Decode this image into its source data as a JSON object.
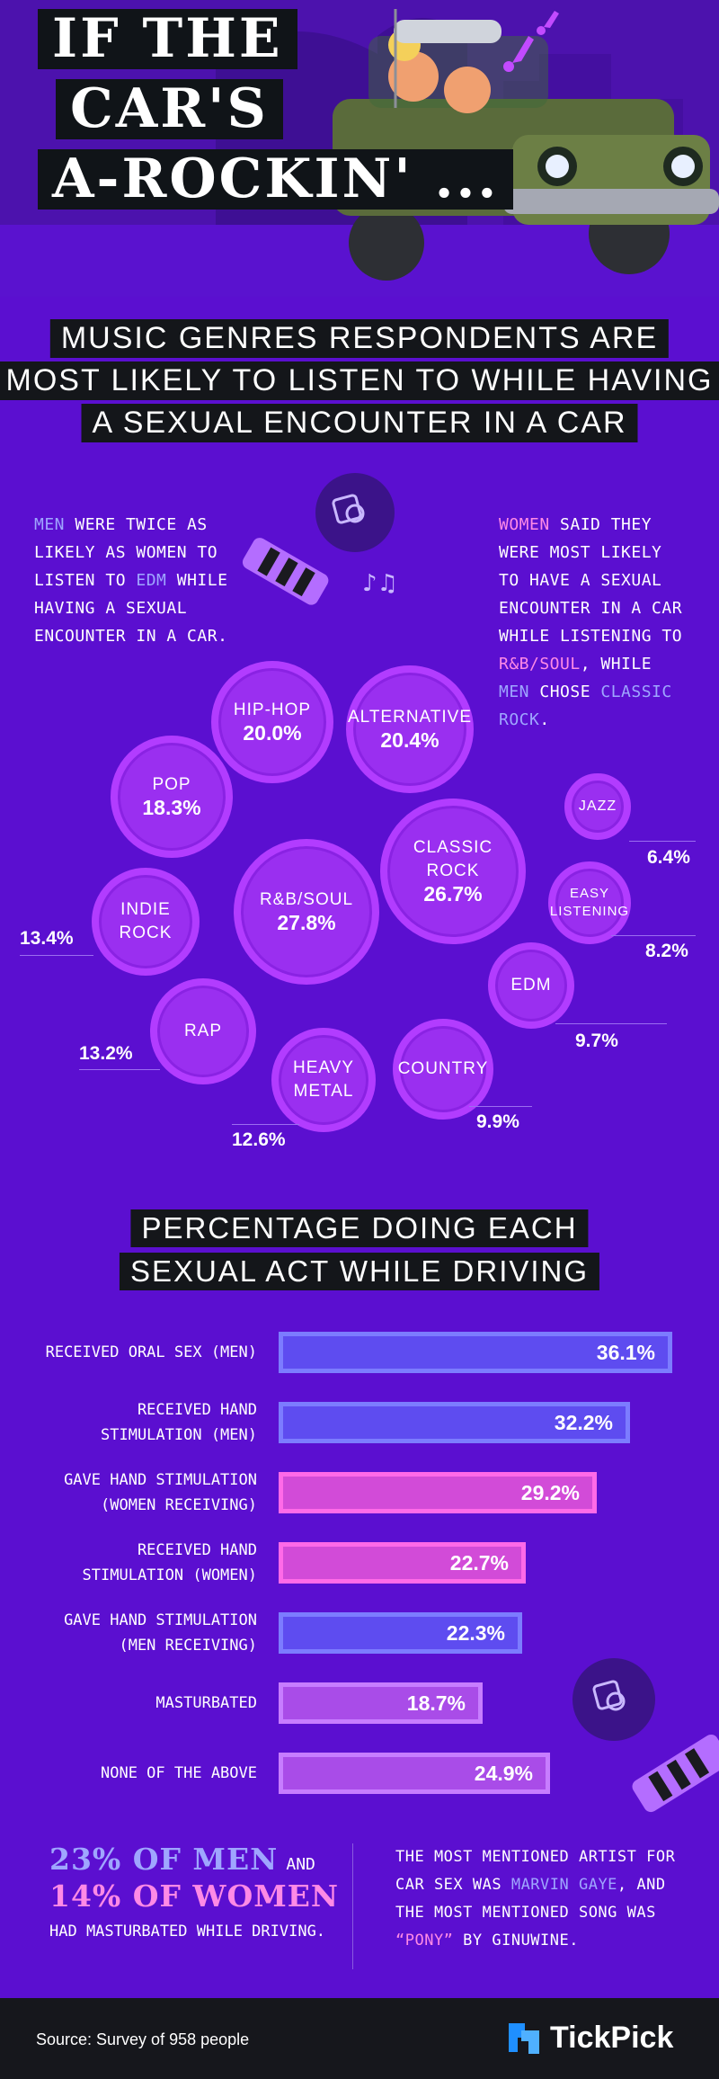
{
  "header": {
    "title_lines": [
      "IF THE",
      "CAR'S",
      "A-ROCKIN' ..."
    ],
    "subtitle_lines": [
      "MUSIC GENRES RESPONDENTS ARE",
      "MOST LIKELY TO LISTEN TO WHILE HAVING",
      "A SEXUAL ENCOUNTER IN A CAR"
    ]
  },
  "men_note": {
    "highlight_1": "MEN",
    "text_1": " WERE TWICE AS LIKELY AS WOMEN TO LISTEN TO ",
    "highlight_2": "EDM",
    "text_2": " WHILE HAVING A SEXUAL ENCOUNTER IN A CAR."
  },
  "women_note": {
    "highlight_1": "WOMEN",
    "text_1": " SAID THEY WERE MOST LIKELY TO HAVE A SEXUAL ENCOUNTER IN A CAR WHILE LISTENING TO ",
    "highlight_2": "R&B/SOUL",
    "text_2": ", WHILE ",
    "highlight_3": "MEN",
    "text_3": " CHOSE ",
    "highlight_4": "CLASSIC ROCK",
    "text_4": "."
  },
  "genres": [
    {
      "label": "HIP-HOP",
      "value": "20.0%"
    },
    {
      "label": "ALTERNATIVE",
      "value": "20.4%"
    },
    {
      "label": "POP",
      "value": "18.3%"
    },
    {
      "label": "JAZZ",
      "value": "6.4%"
    },
    {
      "label": "CLASSIC\nROCK",
      "value": "26.7%"
    },
    {
      "label": "INDIE\nROCK",
      "value": "13.4%"
    },
    {
      "label": "R&B/SOUL",
      "value": "27.8%"
    },
    {
      "label": "EASY\nLISTENING",
      "value": "8.2%"
    },
    {
      "label": "EDM",
      "value": "9.7%"
    },
    {
      "label": "RAP",
      "value": "13.2%"
    },
    {
      "label": "HEAVY\nMETAL",
      "value": "12.6%"
    },
    {
      "label": "COUNTRY",
      "value": "9.9%"
    }
  ],
  "acts_title_lines": [
    "PERCENTAGE DOING EACH",
    "SEXUAL ACT WHILE DRIVING"
  ],
  "chart_data": {
    "type": "bar",
    "orientation": "horizontal",
    "categories": [
      "RECEIVED ORAL SEX (MEN)",
      "RECEIVED HAND\nSTIMULATION (MEN)",
      "GAVE HAND STIMULATION\n(WOMEN RECEIVING)",
      "RECEIVED HAND\nSTIMULATION (WOMEN)",
      "GAVE HAND STIMULATION\n(MEN RECEIVING)",
      "MASTURBATED",
      "NONE OF THE ABOVE"
    ],
    "values": [
      36.1,
      32.2,
      29.2,
      22.7,
      22.3,
      18.7,
      24.9
    ],
    "value_labels": [
      "36.1%",
      "32.2%",
      "29.2%",
      "22.7%",
      "22.3%",
      "18.7%",
      "24.9%"
    ],
    "bar_colors": [
      "#5e4cf0",
      "#5e4cf0",
      "#d24bd8",
      "#d24bd8",
      "#5e4cf0",
      "#a94ce8",
      "#a94ce8"
    ],
    "border_colors": [
      "#7c7cff",
      "#7c7cff",
      "#ff6ae8",
      "#ff6ae8",
      "#7c7cff",
      "#c77dff",
      "#c77dff"
    ]
  },
  "stats": {
    "men_pct": "23% OF MEN",
    "and": "AND",
    "women_pct": "14% OF WOMEN",
    "tail": "HAD MASTURBATED WHILE DRIVING."
  },
  "artist_note": {
    "text_1": "THE MOST MENTIONED ARTIST FOR CAR SEX WAS ",
    "highlight_1": "MARVIN GAYE",
    "text_2": ", AND THE MOST MENTIONED SONG WAS ",
    "highlight_2": "“PONY”",
    "text_3": " BY GINUWINE."
  },
  "footer": {
    "source": "Source: Survey of 958 people",
    "brand": "TickPick"
  },
  "colors": {
    "background": "#5b0fd0",
    "bubble": "#9a2ff0",
    "bubble_ring": "#b23cff",
    "men_highlight": "#9fa6ff",
    "women_highlight": "#ff8ae6"
  }
}
